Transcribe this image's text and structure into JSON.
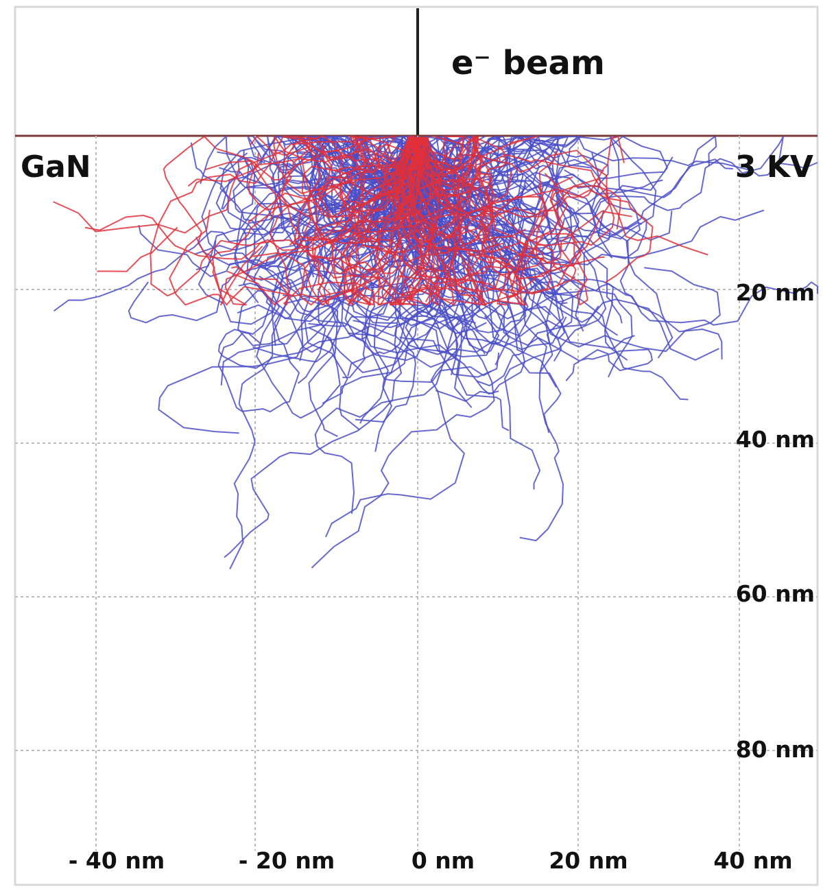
{
  "chart_data": {
    "type": "scatter",
    "subtype": "monte-carlo electron trajectory simulation",
    "annotations": {
      "beam": "e⁻ beam",
      "material": "GaN",
      "voltage": "3 KV"
    },
    "x_ticks": [
      "- 40 nm",
      "- 20 nm",
      "0 nm",
      "20 nm",
      "40 nm"
    ],
    "y_ticks": [
      "20 nm",
      "40 nm",
      "60 nm",
      "80 nm"
    ],
    "x_range_nm": [
      -52,
      52
    ],
    "depth_range_nm": [
      0,
      95
    ],
    "grid": true,
    "series": [
      {
        "color": "#e0303a",
        "description": "trajectories (red, near surface)",
        "count": 60,
        "max_depth_nm": 22
      },
      {
        "color": "#4a4ec8",
        "description": "trajectories (blue)",
        "count": 180,
        "max_depth_nm": 65
      }
    ],
    "colors": {
      "red_series": "#e0303a",
      "blue_series": "#4a4ec8",
      "surface_line": "#7a3a3a"
    }
  }
}
